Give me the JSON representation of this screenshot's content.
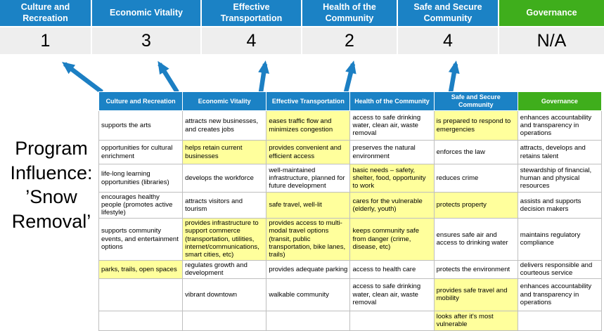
{
  "title": {
    "text": "Program Influence: ’Snow Removal’"
  },
  "banner": {
    "columns": [
      {
        "label": "Culture and Recreation",
        "score": "1",
        "color": "blue"
      },
      {
        "label": "Economic Vitality",
        "score": "3",
        "color": "blue"
      },
      {
        "label": "Effective Transportation",
        "score": "4",
        "color": "blue"
      },
      {
        "label": "Health of the Community",
        "score": "2",
        "color": "blue"
      },
      {
        "label": "Safe and Secure Community",
        "score": "4",
        "color": "blue"
      },
      {
        "label": "Governance",
        "score": "N/A",
        "color": "green"
      }
    ]
  },
  "matrix": {
    "headers": [
      "Culture and Recreation",
      "Economic Vitality",
      "Effective Transportation",
      "Health of the Community",
      "Safe and Secure Community",
      "Governance"
    ],
    "rows": [
      {
        "cells": [
          {
            "text": "supports the arts",
            "highlight": false
          },
          {
            "text": "attracts new businesses, and creates jobs",
            "highlight": false
          },
          {
            "text": "eases traffic flow and minimizes congestion",
            "highlight": true
          },
          {
            "text": "access to safe drinking water, clean air, waste removal",
            "highlight": false
          },
          {
            "text": "is prepared to respond to emergencies",
            "highlight": true
          },
          {
            "text": "enhances accountability and transparency in operations",
            "highlight": false
          }
        ]
      },
      {
        "cells": [
          {
            "text": "opportunities for cultural enrichment",
            "highlight": false
          },
          {
            "text": "helps retain current businesses",
            "highlight": true
          },
          {
            "text": "provides convenient and efficient access",
            "highlight": true
          },
          {
            "text": "preserves the natural environment",
            "highlight": false
          },
          {
            "text": "enforces the law",
            "highlight": false
          },
          {
            "text": "attracts, develops and retains talent",
            "highlight": false
          }
        ]
      },
      {
        "cells": [
          {
            "text": "life-long learning opportunities (libraries)",
            "highlight": false
          },
          {
            "text": "develops the workforce",
            "highlight": false
          },
          {
            "text": "well-maintained infrastructure, planned for future development",
            "highlight": false
          },
          {
            "text": "basic needs – safety, shelter, food, opportunity to work",
            "highlight": true
          },
          {
            "text": "reduces crime",
            "highlight": false
          },
          {
            "text": "stewardship of financial, human and physical resources",
            "highlight": false
          }
        ]
      },
      {
        "cells": [
          {
            "text": "encourages healthy people (promotes active lifestyle)",
            "highlight": false
          },
          {
            "text": "attracts visitors and tourism",
            "highlight": false
          },
          {
            "text": "safe travel, well-lit",
            "highlight": true
          },
          {
            "text": "cares for the vulnerable (elderly, youth)",
            "highlight": true
          },
          {
            "text": "protects property",
            "highlight": true
          },
          {
            "text": "assists and supports decision makers",
            "highlight": false
          }
        ]
      },
      {
        "cells": [
          {
            "text": "supports community events, and entertainment options",
            "highlight": false
          },
          {
            "text": "provides infrastructure to support commerce (transportation, utilities, internet/communications, smart cities, etc)",
            "highlight": true
          },
          {
            "text": "provides access to multi-modal travel options (transit, public transportation, bike lanes, trails)",
            "highlight": true
          },
          {
            "text": "keeps community safe from danger (crime, disease, etc)",
            "highlight": true
          },
          {
            "text": "ensures safe air and access to drinking water",
            "highlight": false
          },
          {
            "text": "maintains regulatory compliance",
            "highlight": false
          }
        ]
      },
      {
        "cells": [
          {
            "text": "parks, trails, open spaces",
            "highlight": true
          },
          {
            "text": "regulates growth and development",
            "highlight": false
          },
          {
            "text": "provides adequate parking",
            "highlight": false
          },
          {
            "text": "access to health care",
            "highlight": false
          },
          {
            "text": "protects the environment",
            "highlight": false
          },
          {
            "text": "delivers responsible and courteous service",
            "highlight": false
          }
        ]
      },
      {
        "cells": [
          {
            "text": "",
            "highlight": false
          },
          {
            "text": "vibrant downtown",
            "highlight": false
          },
          {
            "text": "walkable community",
            "highlight": false
          },
          {
            "text": "access to safe drinking water, clean air, waste removal",
            "highlight": false
          },
          {
            "text": "provides safe travel and mobility",
            "highlight": true
          },
          {
            "text": "enhances accountability and transparency in operations",
            "highlight": false
          }
        ]
      },
      {
        "cells": [
          {
            "text": "",
            "highlight": false
          },
          {
            "text": "",
            "highlight": false
          },
          {
            "text": "",
            "highlight": false
          },
          {
            "text": "",
            "highlight": false
          },
          {
            "text": "looks after it's most vulnerable",
            "highlight": true
          },
          {
            "text": "",
            "highlight": false
          }
        ]
      }
    ]
  },
  "colors": {
    "header_blue": "#1b82c5",
    "header_green": "#3fae1c",
    "highlight_yellow": "#ffff9c",
    "score_band_gray": "#eeeeee",
    "arrow_blue": "#1c7fc3"
  }
}
